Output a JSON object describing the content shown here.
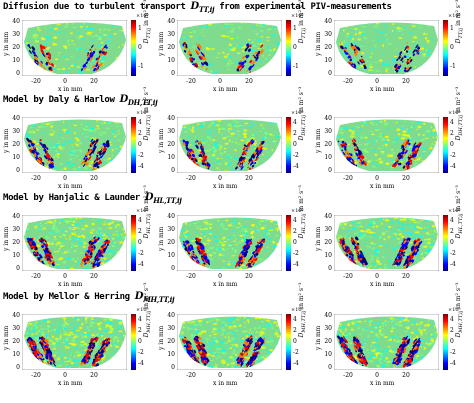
{
  "rows": [
    {
      "title_text": "Diffusion due to turbulent transport ",
      "title_symbol": "D",
      "title_sub": "TT,ij",
      "title_after": " from experimental PIV-measurements",
      "cbar_sym": "D",
      "cbar_sub": "TT,ij"
    },
    {
      "title_text": "Model by Daly & Harlow ",
      "title_symbol": "D",
      "title_sub": "DH,TT,ij",
      "title_after": "",
      "cbar_sym": "D",
      "cbar_sub": "DH,TT,ij"
    },
    {
      "title_text": "Model by Hanjalic & Launder ",
      "title_symbol": "D",
      "title_sub": "HL,TT,ij",
      "title_after": "",
      "cbar_sym": "D",
      "cbar_sub": "HL,TT,ij"
    },
    {
      "title_text": "Model by Mellor & Herring ",
      "title_symbol": "D",
      "title_sub": "MH,TT,ij",
      "title_after": "",
      "cbar_sym": "D",
      "cbar_sub": "MH,TT,ij"
    }
  ],
  "axes": {
    "xlabel": "x in mm",
    "ylabel": "y in mm",
    "xticks": [
      "-20",
      "0",
      "20"
    ],
    "yticks": [
      "40",
      "30",
      "20",
      "10",
      "0"
    ],
    "cbar_unit": "in m² s⁻³",
    "cbar_exponent": "×10⁶",
    "cbar_ticks_small": [
      "1",
      "0",
      "-1"
    ],
    "cbar_ticks_large": [
      "4",
      "2",
      "0",
      "-2",
      "-4"
    ]
  },
  "colormap": [
    "#00007f",
    "#0000ff",
    "#007fff",
    "#00ffff",
    "#7fff7f",
    "#ffff00",
    "#ff7f00",
    "#ff0000",
    "#7f0000"
  ]
}
